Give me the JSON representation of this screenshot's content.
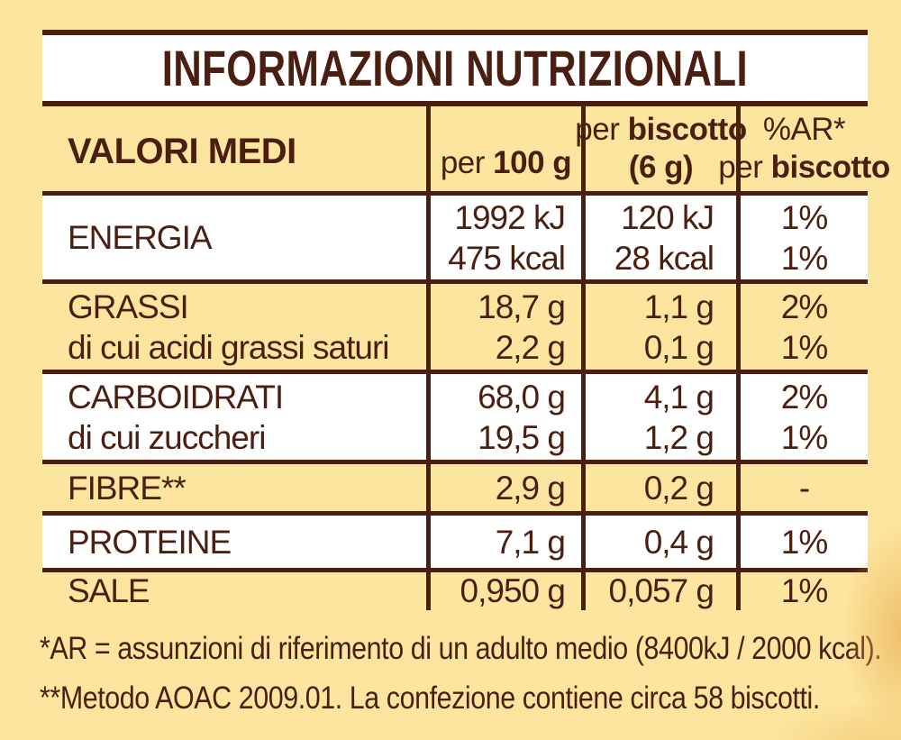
{
  "colors": {
    "background": "#FCE59E",
    "text_and_borders": "#4A1F11",
    "row_white": "#FFFFFF"
  },
  "title": "INFORMAZIONI NUTRIZIONALI",
  "table": {
    "header": {
      "label": "VALORI MEDI",
      "per100_prefix": "per ",
      "per100_bold": "100 g",
      "biscotto_prefix": "per ",
      "biscotto_bold": "biscotto",
      "biscotto_weight": "(6 g)",
      "ar_line1": "%AR*",
      "ar_prefix": "per ",
      "ar_bold": "biscotto"
    },
    "rows": [
      {
        "name": "ENERGIA",
        "per100_l1": "1992 kJ",
        "per100_l2": "475 kcal",
        "biscotto_l1": "120 kJ",
        "biscotto_l2": "28 kcal",
        "ar_l1": "1%",
        "ar_l2": "1%"
      },
      {
        "name": "GRASSI",
        "sub": "di cui acidi grassi saturi",
        "per100_l1": "18,7 g",
        "per100_l2": "2,2 g",
        "biscotto_l1": "1,1 g",
        "biscotto_l2": "0,1 g",
        "ar_l1": "2%",
        "ar_l2": "1%"
      },
      {
        "name": "CARBOIDRATI",
        "sub": "di cui zuccheri",
        "per100_l1": "68,0 g",
        "per100_l2": "19,5 g",
        "biscotto_l1": "4,1 g",
        "biscotto_l2": "1,2 g",
        "ar_l1": "2%",
        "ar_l2": "1%"
      },
      {
        "name": "FIBRE**",
        "per100_l1": "2,9 g",
        "biscotto_l1": "0,2 g",
        "ar_l1": "-"
      },
      {
        "name": "PROTEINE",
        "per100_l1": "7,1 g",
        "biscotto_l1": "0,4 g",
        "ar_l1": "1%"
      },
      {
        "name": "SALE",
        "per100_l1": "0,950 g",
        "biscotto_l1": "0,057 g",
        "ar_l1": "1%"
      }
    ]
  },
  "footnotes": {
    "line1": "*AR = assunzioni di riferimento di un adulto medio (8400kJ / 2000 kcal).",
    "line2": "**Metodo AOAC 2009.01. La confezione contiene circa 58 biscotti."
  }
}
